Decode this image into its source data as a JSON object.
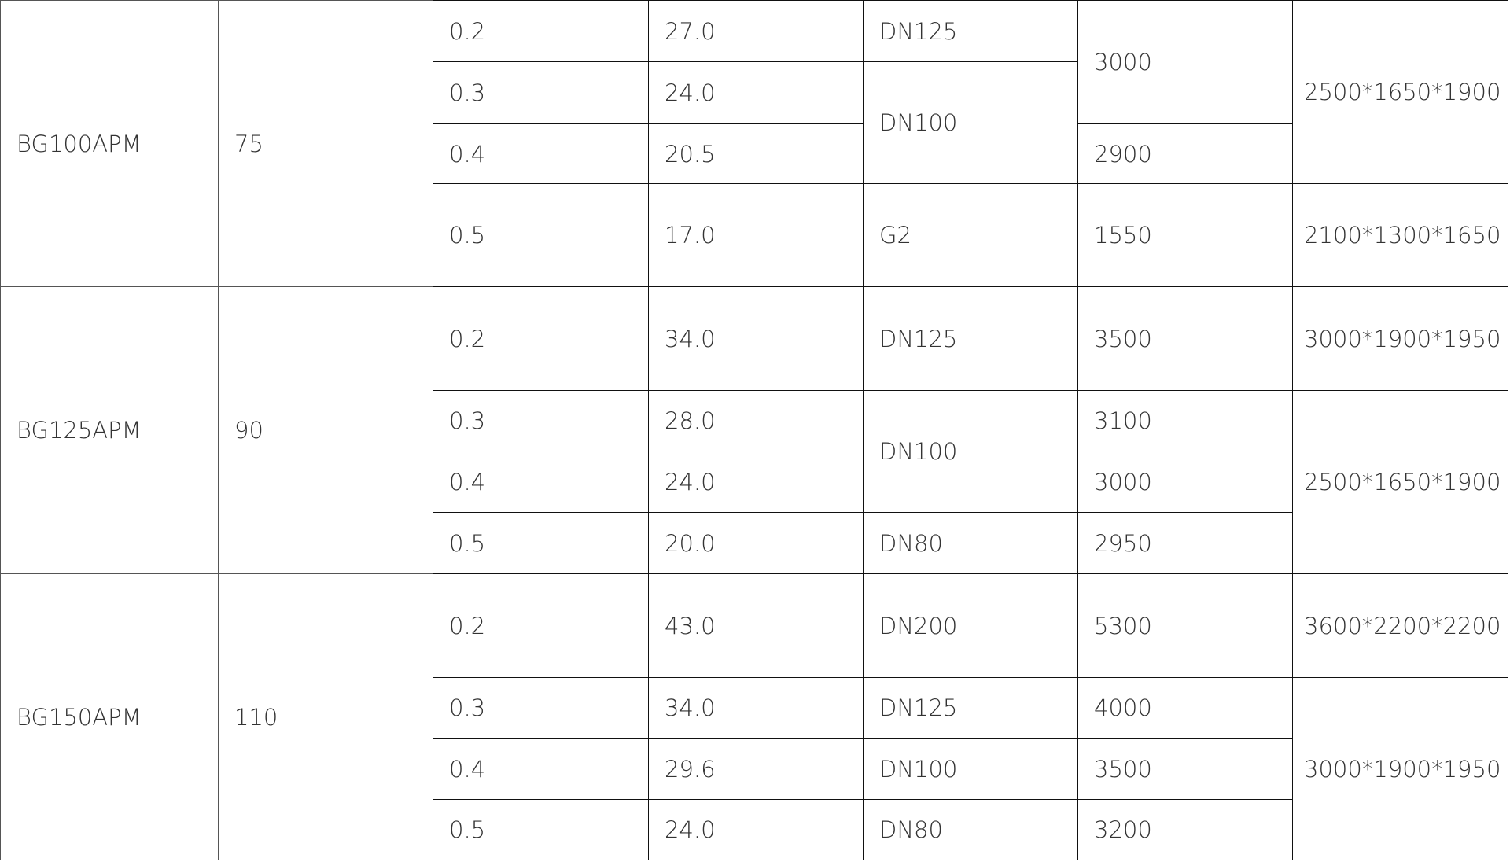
{
  "table": {
    "rows": [
      [
        {
          "text": "BG100APM",
          "rowspan": 4,
          "col": 0
        },
        {
          "text": "75",
          "rowspan": 4,
          "col": 1
        },
        {
          "text": "0.2",
          "col": 2
        },
        {
          "text": "27.0",
          "col": 3
        },
        {
          "text": "DN125",
          "col": 4
        },
        {
          "text": "3000",
          "rowspan": 2,
          "col": 5
        },
        {
          "text": "2500*1650*1900",
          "rowspan": 3,
          "col": 6
        }
      ],
      [
        {
          "text": "0.3",
          "col": 2
        },
        {
          "text": "24.0",
          "col": 3
        },
        {
          "text": "DN100",
          "rowspan": 2,
          "col": 4
        }
      ],
      [
        {
          "text": "0.4",
          "col": 2
        },
        {
          "text": "20.5",
          "col": 3
        },
        {
          "text": "2900",
          "col": 5
        }
      ],
      [
        {
          "text": "0.5",
          "col": 2
        },
        {
          "text": "17.0",
          "col": 3
        },
        {
          "text": "G2",
          "col": 4
        },
        {
          "text": "1550",
          "col": 5
        },
        {
          "text": "2100*1300*1650",
          "col": 6
        }
      ],
      [
        {
          "text": "BG125APM",
          "rowspan": 4,
          "col": 0
        },
        {
          "text": "90",
          "rowspan": 4,
          "col": 1
        },
        {
          "text": "0.2",
          "col": 2
        },
        {
          "text": "34.0",
          "col": 3
        },
        {
          "text": "DN125",
          "col": 4
        },
        {
          "text": "3500",
          "col": 5
        },
        {
          "text": "3000*1900*1950",
          "col": 6
        }
      ],
      [
        {
          "text": "0.3",
          "col": 2
        },
        {
          "text": "28.0",
          "col": 3
        },
        {
          "text": "DN100",
          "rowspan": 2,
          "col": 4
        },
        {
          "text": "3100",
          "col": 5
        },
        {
          "text": "2500*1650*1900",
          "rowspan": 3,
          "col": 6
        }
      ],
      [
        {
          "text": "0.4",
          "col": 2
        },
        {
          "text": "24.0",
          "col": 3
        },
        {
          "text": "3000",
          "col": 5
        }
      ],
      [
        {
          "text": "0.5",
          "col": 2
        },
        {
          "text": "20.0",
          "col": 3
        },
        {
          "text": "DN80",
          "col": 4
        },
        {
          "text": "2950",
          "col": 5
        }
      ],
      [
        {
          "text": "BG150APM",
          "rowspan": 4,
          "col": 0
        },
        {
          "text": "110",
          "rowspan": 4,
          "col": 1
        },
        {
          "text": "0.2",
          "col": 2
        },
        {
          "text": "43.0",
          "col": 3
        },
        {
          "text": "DN200",
          "col": 4
        },
        {
          "text": "5300",
          "col": 5
        },
        {
          "text": "3600*2200*2200",
          "col": 6
        }
      ],
      [
        {
          "text": "0.3",
          "col": 2
        },
        {
          "text": "34.0",
          "col": 3
        },
        {
          "text": "DN125",
          "col": 4
        },
        {
          "text": "4000",
          "col": 5
        },
        {
          "text": "3000*1900*1950",
          "rowspan": 3,
          "col": 6
        }
      ],
      [
        {
          "text": "0.4",
          "col": 2
        },
        {
          "text": "29.6",
          "col": 3
        },
        {
          "text": "DN100",
          "col": 4
        },
        {
          "text": "3500",
          "col": 5
        }
      ],
      [
        {
          "text": "0.5",
          "col": 2
        },
        {
          "text": "24.0",
          "col": 3
        },
        {
          "text": "DN80",
          "col": 4
        },
        {
          "text": "3200",
          "col": 5
        }
      ]
    ]
  }
}
